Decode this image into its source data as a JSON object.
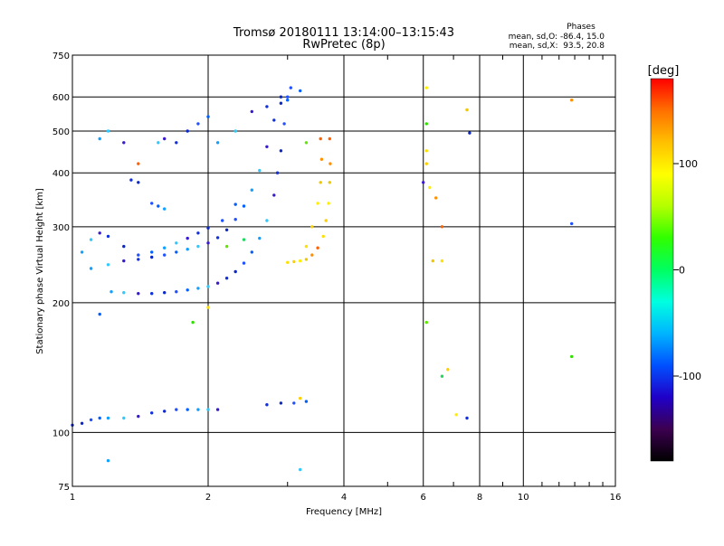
{
  "chart_data": {
    "type": "scatter",
    "title": "Tromsø 20180111 13:14:00–13:15:43",
    "subtitle": "RwPretec (8p)",
    "xlabel": "Frequency [MHz]",
    "ylabel": "Stationary phase Virtual Height [km]",
    "x_scale": "log",
    "y_scale": "log",
    "xlim": [
      1,
      16
    ],
    "ylim": [
      75,
      750
    ],
    "x_ticks": [
      1,
      2,
      4,
      6,
      8,
      10,
      16
    ],
    "x_tick_labels": [
      "1",
      "2",
      "4",
      "6",
      "8",
      "10",
      "16"
    ],
    "y_ticks": [
      75,
      100,
      200,
      300,
      400,
      500,
      600,
      750
    ],
    "y_tick_labels": [
      "75",
      "100",
      "200",
      "300",
      "400",
      "500",
      "600",
      "750"
    ],
    "grid": true,
    "phases_title": "Phases",
    "phases_o": "mean, sd,O: -86.4, 15.0",
    "phases_x": "mean, sd,X:  93.5, 20.8",
    "colorbar": {
      "label": "[deg]",
      "range": [
        -180,
        180
      ],
      "ticks": [
        100,
        0,
        -100
      ],
      "tick_labels": [
        "100",
        "0",
        "-100"
      ],
      "colors": [
        "#000000",
        "#3c0050",
        "#2000c8",
        "#0050ff",
        "#00b4ff",
        "#00ffe0",
        "#00ff60",
        "#30ff00",
        "#b4ff00",
        "#ffff00",
        "#ffc000",
        "#ff7000",
        "#ff0000"
      ]
    },
    "series": [
      {
        "points": [
          [
            1.0,
            104
          ],
          [
            1.05,
            105
          ],
          [
            1.1,
            107
          ],
          [
            1.15,
            108
          ],
          [
            1.2,
            108
          ],
          [
            1.3,
            108
          ],
          [
            1.4,
            109
          ],
          [
            1.5,
            111
          ],
          [
            1.6,
            112
          ],
          [
            1.7,
            113
          ],
          [
            1.8,
            113
          ],
          [
            1.9,
            113
          ],
          [
            2.0,
            113
          ],
          [
            2.1,
            113
          ],
          [
            2.7,
            116
          ],
          [
            2.9,
            117
          ],
          [
            3.1,
            117
          ],
          [
            3.3,
            118
          ],
          [
            1.22,
            212
          ],
          [
            1.3,
            211
          ],
          [
            1.4,
            210
          ],
          [
            1.5,
            210
          ],
          [
            1.6,
            211
          ],
          [
            1.7,
            212
          ],
          [
            1.8,
            214
          ],
          [
            1.9,
            216
          ],
          [
            2.0,
            218
          ],
          [
            2.1,
            222
          ],
          [
            2.2,
            228
          ],
          [
            2.3,
            236
          ],
          [
            2.4,
            247
          ],
          [
            2.5,
            262
          ],
          [
            2.6,
            282
          ],
          [
            2.7,
            310
          ],
          [
            2.8,
            355
          ],
          [
            2.85,
            400
          ],
          [
            2.9,
            450
          ],
          [
            2.95,
            520
          ],
          [
            3.0,
            590
          ],
          [
            1.1,
            240
          ],
          [
            1.2,
            245
          ],
          [
            1.3,
            250
          ],
          [
            1.4,
            252
          ],
          [
            1.5,
            255
          ],
          [
            1.6,
            258
          ],
          [
            1.7,
            262
          ],
          [
            1.8,
            266
          ],
          [
            1.9,
            270
          ],
          [
            2.0,
            275
          ],
          [
            2.1,
            283
          ],
          [
            2.2,
            295
          ],
          [
            2.3,
            312
          ],
          [
            2.4,
            335
          ],
          [
            2.5,
            365
          ],
          [
            2.6,
            405
          ],
          [
            2.7,
            460
          ],
          [
            2.8,
            530
          ],
          [
            2.9,
            600
          ],
          [
            3.05,
            630
          ],
          [
            3.2,
            620
          ],
          [
            1.05,
            262
          ],
          [
            1.1,
            280
          ],
          [
            1.15,
            290
          ],
          [
            1.2,
            285
          ],
          [
            1.3,
            270
          ],
          [
            1.4,
            258
          ],
          [
            1.5,
            262
          ],
          [
            1.6,
            268
          ],
          [
            1.7,
            275
          ],
          [
            1.8,
            282
          ],
          [
            1.9,
            290
          ],
          [
            2.0,
            298
          ],
          [
            2.15,
            310
          ],
          [
            2.3,
            338
          ],
          [
            1.15,
            480
          ],
          [
            1.2,
            500
          ],
          [
            1.3,
            470
          ],
          [
            1.35,
            385
          ],
          [
            1.4,
            380
          ],
          [
            1.5,
            340
          ],
          [
            1.55,
            335
          ],
          [
            1.6,
            330
          ],
          [
            1.55,
            470
          ],
          [
            1.6,
            480
          ],
          [
            1.7,
            470
          ],
          [
            1.8,
            500
          ],
          [
            1.9,
            520
          ],
          [
            2.0,
            540
          ],
          [
            2.1,
            470
          ],
          [
            2.3,
            500
          ],
          [
            2.5,
            555
          ],
          [
            2.7,
            570
          ],
          [
            2.9,
            580
          ],
          [
            3.0,
            600
          ],
          [
            1.15,
            188
          ],
          [
            1.2,
            86
          ],
          [
            3.2,
            82
          ],
          [
            6.0,
            380
          ],
          [
            7.5,
            108
          ],
          [
            7.6,
            495
          ],
          [
            12.8,
            305
          ]
        ]
      },
      {
        "points": [
          [
            3.0,
            248
          ],
          [
            3.1,
            249
          ],
          [
            3.2,
            250
          ],
          [
            3.3,
            252
          ],
          [
            3.4,
            258
          ],
          [
            3.5,
            268
          ],
          [
            3.6,
            285
          ],
          [
            3.65,
            310
          ],
          [
            3.7,
            340
          ],
          [
            3.72,
            380
          ],
          [
            3.73,
            420
          ],
          [
            3.72,
            480
          ],
          [
            3.3,
            270
          ],
          [
            3.4,
            300
          ],
          [
            3.5,
            340
          ],
          [
            3.55,
            380
          ],
          [
            3.57,
            430
          ],
          [
            3.55,
            480
          ],
          [
            6.1,
            450
          ],
          [
            6.1,
            420
          ],
          [
            6.2,
            370
          ],
          [
            6.3,
            250
          ],
          [
            6.4,
            350
          ],
          [
            6.6,
            300
          ],
          [
            6.6,
            250
          ],
          [
            6.8,
            140
          ],
          [
            7.1,
            110
          ],
          [
            7.5,
            560
          ],
          [
            12.8,
            590
          ],
          [
            1.4,
            420
          ],
          [
            2.0,
            195
          ],
          [
            3.2,
            120
          ],
          [
            6.1,
            630
          ]
        ]
      },
      {
        "points": [
          [
            1.85,
            180
          ],
          [
            2.2,
            270
          ],
          [
            2.4,
            280
          ],
          [
            6.1,
            520
          ],
          [
            6.1,
            180
          ],
          [
            6.6,
            135
          ],
          [
            12.8,
            150
          ],
          [
            3.3,
            470
          ]
        ]
      }
    ]
  }
}
